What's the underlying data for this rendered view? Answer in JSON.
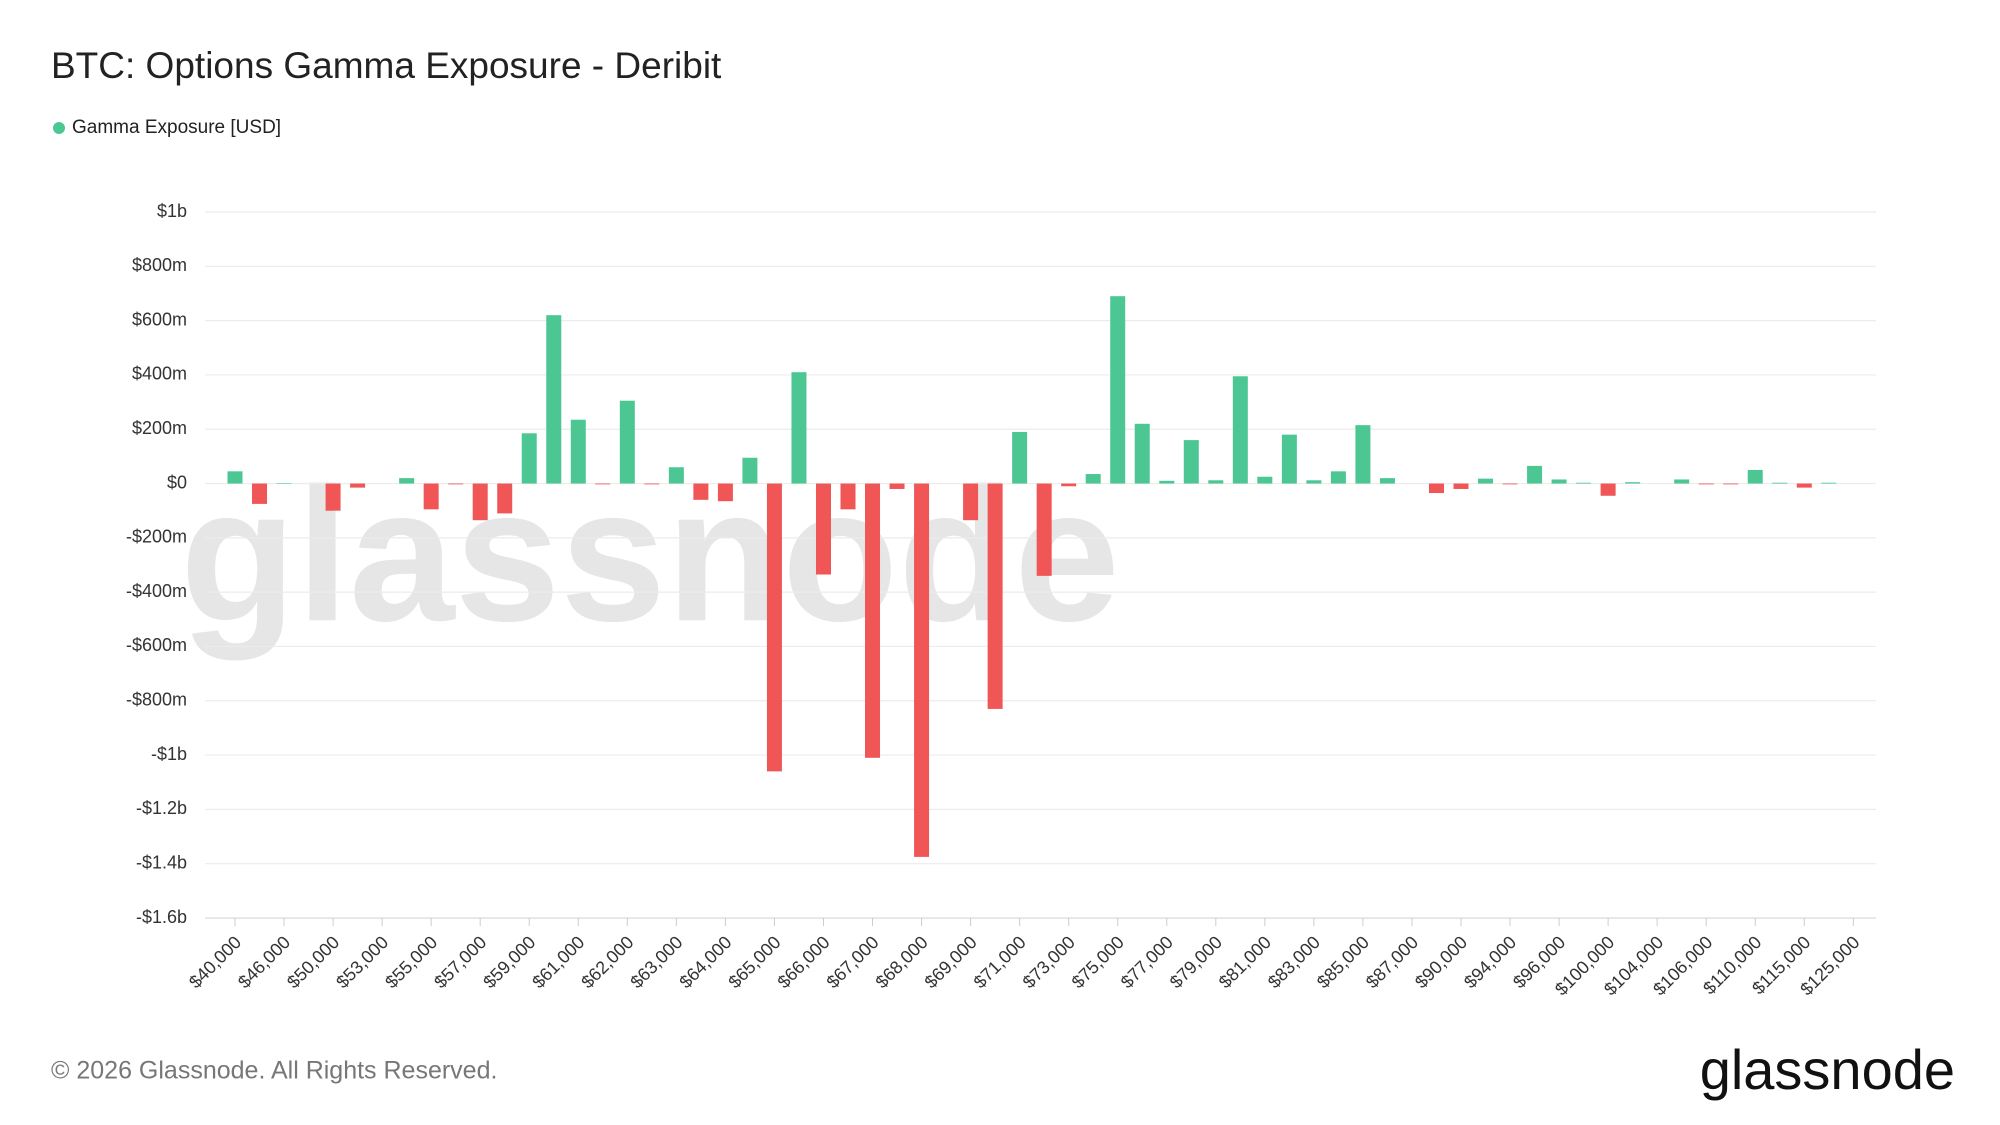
{
  "chart_data": {
    "type": "bar",
    "title": "BTC: Options Gamma Exposure - Deribit",
    "series": [
      {
        "name": "Gamma Exposure [USD]",
        "color": "#4cc794",
        "negative_color": "#f05656",
        "values": [
          45000000,
          -75000000,
          2000000,
          0,
          -100000000,
          -15000000,
          0,
          20000000,
          -95000000,
          -3000000,
          -135000000,
          -110000000,
          185000000,
          620000000,
          235000000,
          -3000000,
          305000000,
          -3000000,
          60000000,
          -60000000,
          -65000000,
          95000000,
          -1060000000,
          410000000,
          -335000000,
          -95000000,
          -1010000000,
          -20000000,
          -1375000000,
          0,
          -135000000,
          -830000000,
          190000000,
          -340000000,
          -10000000,
          35000000,
          690000000,
          220000000,
          10000000,
          160000000,
          12000000,
          395000000,
          25000000,
          180000000,
          12000000,
          45000000,
          215000000,
          20000000,
          0,
          -35000000,
          -20000000,
          18000000,
          -3000000,
          65000000,
          15000000,
          3000000,
          -45000000,
          5000000,
          0,
          15000000,
          -3000000,
          -3000000,
          50000000,
          3000000,
          -15000000,
          3000000,
          0
        ]
      }
    ],
    "categories": [
      "$40,000",
      null,
      "$46,000",
      null,
      "$50,000",
      null,
      "$53,000",
      null,
      "$55,000",
      null,
      "$57,000",
      null,
      "$59,000",
      null,
      "$61,000",
      null,
      "$62,000",
      null,
      "$63,000",
      null,
      "$64,000",
      null,
      "$65,000",
      null,
      "$66,000",
      null,
      "$67,000",
      null,
      "$68,000",
      null,
      "$69,000",
      null,
      "$71,000",
      null,
      "$73,000",
      null,
      "$75,000",
      null,
      "$77,000",
      null,
      "$79,000",
      null,
      "$81,000",
      null,
      "$83,000",
      null,
      "$85,000",
      null,
      "$87,000",
      null,
      "$90,000",
      null,
      "$94,000",
      null,
      "$96,000",
      null,
      "$100,000",
      null,
      "$104,000",
      null,
      "$106,000",
      null,
      "$110,000",
      null,
      "$115,000",
      null,
      "$125,000"
    ],
    "ylim": [
      -1600000000,
      1000000000
    ],
    "yticks": [
      {
        "value": -1600000000,
        "label": "-$1.6b"
      },
      {
        "value": -1400000000,
        "label": "-$1.4b"
      },
      {
        "value": -1200000000,
        "label": "-$1.2b"
      },
      {
        "value": -1000000000,
        "label": "-$1b"
      },
      {
        "value": -800000000,
        "label": "-$800m"
      },
      {
        "value": -600000000,
        "label": "-$600m"
      },
      {
        "value": -400000000,
        "label": "-$400m"
      },
      {
        "value": -200000000,
        "label": "-$200m"
      },
      {
        "value": 0,
        "label": "$0"
      },
      {
        "value": 200000000,
        "label": "$200m"
      },
      {
        "value": 400000000,
        "label": "$400m"
      },
      {
        "value": 600000000,
        "label": "$600m"
      },
      {
        "value": 800000000,
        "label": "$800m"
      },
      {
        "value": 1000000000,
        "label": "$1b"
      }
    ],
    "grid": true,
    "legend": "top-left",
    "watermark": "glassnode",
    "footer": "© 2026 Glassnode. All Rights Reserved.",
    "logo": "glassnode"
  }
}
